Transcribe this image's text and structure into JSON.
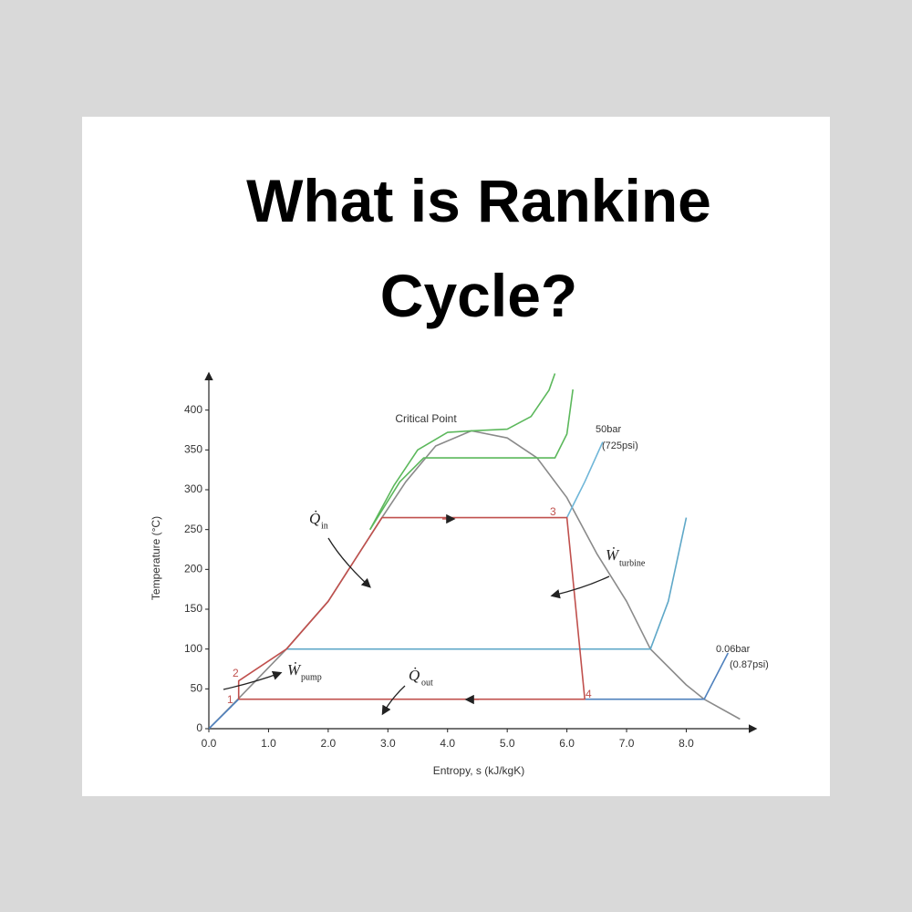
{
  "chart_data": {
    "type": "line",
    "title": "What is Rankine Cycle?",
    "x_label": "Entropy, s (kJ/kgK)",
    "y_label": "Temperature (°C)",
    "xlim": [
      0,
      9.2
    ],
    "ylim": [
      0,
      450
    ],
    "xticks": [
      {
        "value": 0,
        "label": "0.0"
      },
      {
        "value": 1,
        "label": "1.0"
      },
      {
        "value": 2,
        "label": "2.0"
      },
      {
        "value": 3,
        "label": "3.0"
      },
      {
        "value": 4,
        "label": "4.0"
      },
      {
        "value": 5,
        "label": "5.0"
      },
      {
        "value": 6,
        "label": "6.0"
      },
      {
        "value": 7,
        "label": "7.0"
      },
      {
        "value": 8,
        "label": "8.0"
      }
    ],
    "yticks": [
      0,
      50,
      100,
      150,
      200,
      250,
      300,
      350,
      400
    ],
    "series": [
      {
        "color": "#8a8a8a",
        "x": [
          0,
          0.5,
          1.3,
          2.0,
          2.9,
          3.3,
          3.8,
          4.4,
          5.0,
          5.5,
          6.0,
          6.5,
          7.0,
          7.4,
          8.0,
          8.3,
          8.9
        ],
        "y": [
          0,
          38,
          100,
          160,
          265,
          310,
          355,
          374,
          365,
          340,
          290,
          220,
          160,
          100,
          55,
          37,
          12
        ]
      },
      {
        "color": "#4f81bd",
        "x": [
          0,
          0.5
        ],
        "y": [
          0,
          37
        ]
      },
      {
        "color": "#4f81bd",
        "x": [
          6.3,
          8.3,
          8.7
        ],
        "y": [
          37,
          37,
          95
        ]
      },
      {
        "color": "#5fa8c8",
        "x": [
          1.3,
          7.4,
          7.7,
          8.0
        ],
        "y": [
          100,
          100,
          160,
          265
        ]
      },
      {
        "color": "#6fb6d8",
        "x": [
          6.0,
          6.3,
          6.6
        ],
        "y": [
          265,
          310,
          360
        ]
      },
      {
        "color": "#5cb85c",
        "x": [
          2.7,
          3.1,
          3.5,
          4.0,
          4.4,
          5.0,
          5.4,
          5.7,
          5.8
        ],
        "y": [
          250,
          305,
          350,
          372,
          374,
          376,
          392,
          425,
          446
        ]
      },
      {
        "color": "#5cb85c",
        "x": [
          2.7,
          3.2,
          3.6,
          5.8,
          6.0,
          6.1
        ],
        "y": [
          250,
          310,
          340,
          340,
          370,
          426
        ]
      },
      {
        "color": "#c0504d",
        "x": [
          0.5,
          0.5,
          1.3,
          2.0,
          2.9,
          6.0,
          6.3,
          0.5
        ],
        "y": [
          37,
          60,
          100,
          160,
          265,
          265,
          37,
          37
        ]
      }
    ],
    "annotations": [
      {
        "text": "Critical Point"
      },
      {
        "text": "50bar"
      },
      {
        "text": "(725psi)"
      },
      {
        "text": "0.06bar"
      },
      {
        "text": "(0.87psi)"
      },
      {
        "text": "1"
      },
      {
        "text": "2"
      },
      {
        "text": "3"
      },
      {
        "text": "4"
      },
      {
        "text": "Q̇",
        "subscript": "in"
      },
      {
        "text": "Ẇ",
        "subscript": "turbine"
      },
      {
        "text": "Ẇ",
        "subscript": "pump"
      },
      {
        "text": "Q̇",
        "subscript": "out"
      }
    ]
  }
}
